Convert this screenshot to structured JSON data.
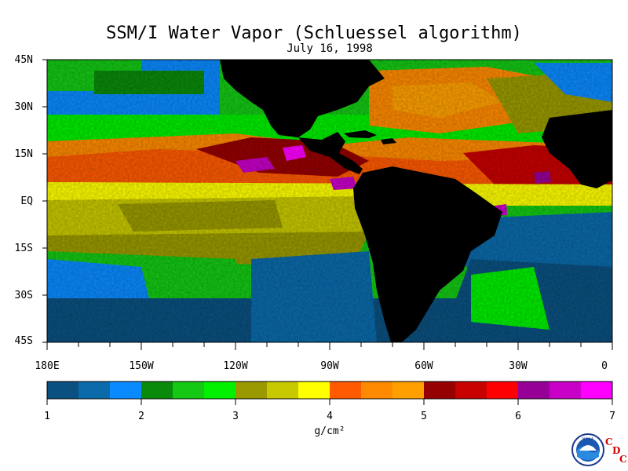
{
  "title": "SSM/I Water Vapor (Schluessel algorithm)",
  "date": "July 16, 1998",
  "lat_labels": [
    "45N",
    "30N",
    "15N",
    "EQ",
    "15S",
    "30S",
    "45S"
  ],
  "lon_labels": [
    "180E",
    "150W",
    "120W",
    "90W",
    "60W",
    "30W",
    "0"
  ],
  "colorbar": {
    "min": 1,
    "max": 7,
    "step": 0.333,
    "tick_labels": [
      "1",
      "2",
      "3",
      "4",
      "5",
      "6",
      "7"
    ],
    "unit": "g/cm²",
    "colors": [
      "#0a5080",
      "#0a6aaa",
      "#0a8aff",
      "#0a8a0a",
      "#14c814",
      "#00f000",
      "#9a9a00",
      "#c8c800",
      "#ffff00",
      "#ff5a00",
      "#ff8a00",
      "#ffa000",
      "#960000",
      "#c80000",
      "#ff0000",
      "#960096",
      "#c800c8",
      "#ff00ff"
    ]
  },
  "map": {
    "lon_range": [
      "180E",
      "0"
    ],
    "lat_range": [
      "45S",
      "45N"
    ],
    "land_color": "#000000"
  },
  "logo": {
    "emblem_text": "NOAA",
    "lab_letters": [
      "C",
      "D",
      "C"
    ]
  }
}
